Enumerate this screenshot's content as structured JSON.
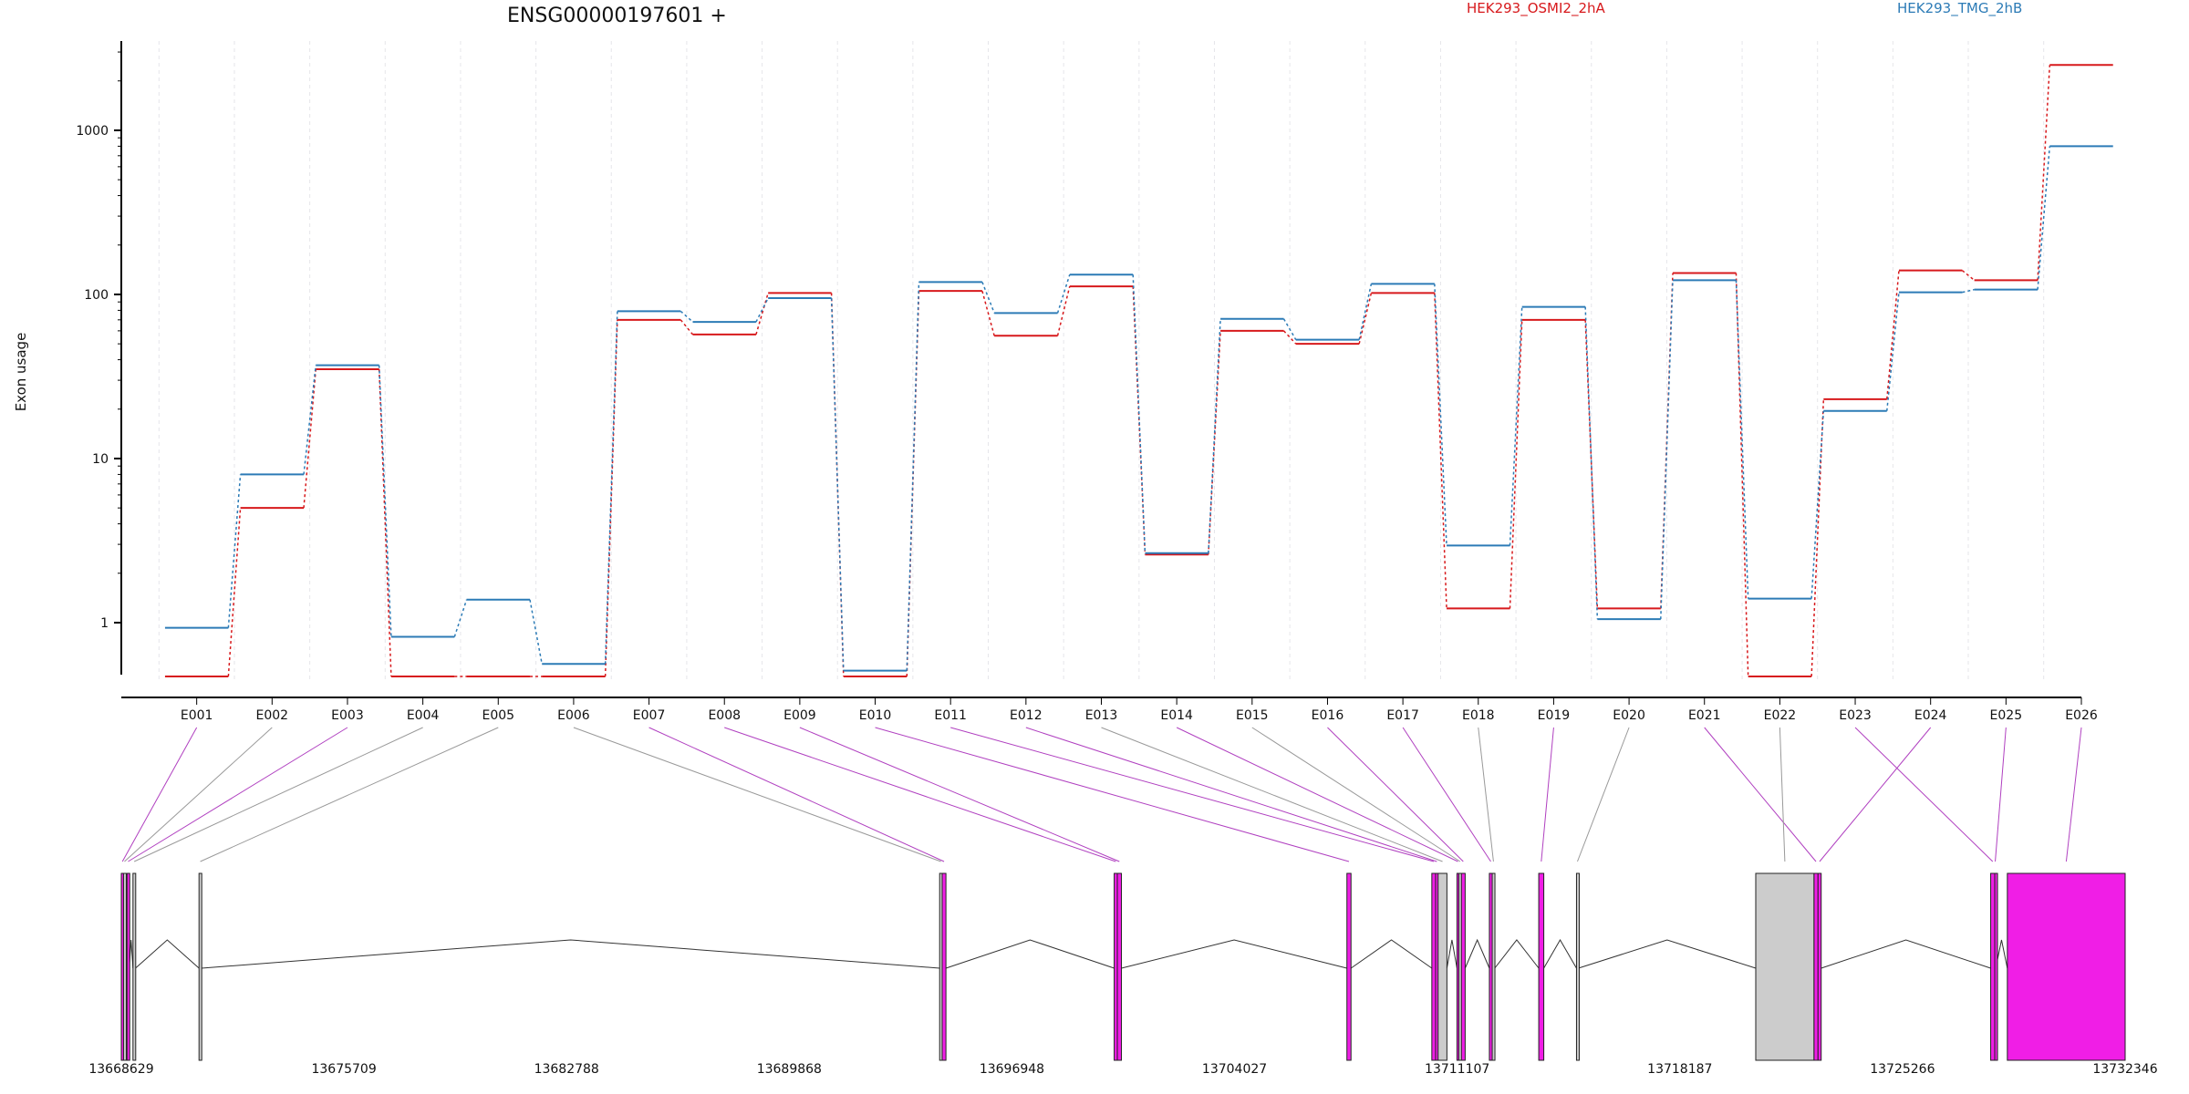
{
  "chart_data": {
    "type": "line",
    "title": "ENSG00000197601 +",
    "ylabel": "Exon usage",
    "xlabel": "",
    "yscale": "log",
    "ylim": [
      0.47,
      3500
    ],
    "yticks": [
      1,
      10,
      100,
      1000
    ],
    "grid": "vertical-dashed",
    "legend_placement": "top-right",
    "categories": [
      "E001",
      "E002",
      "E003",
      "E004",
      "E005",
      "E006",
      "E007",
      "E008",
      "E009",
      "E010",
      "E011",
      "E012",
      "E013",
      "E014",
      "E015",
      "E016",
      "E017",
      "E018",
      "E019",
      "E020",
      "E021",
      "E022",
      "E023",
      "E024",
      "E025",
      "E026"
    ],
    "series": [
      {
        "name": "HEK293_OSMI2_2hA",
        "color": "#d7191c",
        "values": [
          0.47,
          5,
          35,
          0.47,
          0.47,
          0.47,
          70,
          57,
          102,
          0.47,
          105,
          56,
          112,
          2.6,
          60,
          50,
          102,
          1.22,
          70,
          1.22,
          135,
          0.47,
          23,
          140,
          122,
          2500
        ]
      },
      {
        "name": "HEK293_TMG_2hB",
        "color": "#2c7bb6",
        "values": [
          0.93,
          8,
          37,
          0.82,
          1.38,
          0.56,
          79,
          68,
          95,
          0.51,
          119,
          77,
          132,
          2.65,
          71,
          53,
          116,
          2.95,
          84,
          1.05,
          122,
          1.4,
          19.5,
          103,
          107,
          800
        ]
      }
    ],
    "genomic_axis": {
      "tick_labels": [
        "13668629",
        "13675709",
        "13682788",
        "13689868",
        "13696948",
        "13704027",
        "13711107",
        "13718187",
        "13725266",
        "13732346"
      ],
      "tick_values": [
        13668629,
        13675709,
        13682788,
        13689868,
        13696948,
        13704027,
        13711107,
        13718187,
        13725266,
        13732346
      ]
    },
    "exons": [
      {
        "id": "E001",
        "start": 13668629,
        "end": 13668700,
        "color": "#f01ee6"
      },
      {
        "id": "E002",
        "start": 13668700,
        "end": 13668760,
        "color": "#cccccc"
      },
      {
        "id": "E003",
        "start": 13668810,
        "end": 13668880,
        "color": "#f01ee6"
      },
      {
        "id": "E004",
        "start": 13669000,
        "end": 13669080,
        "color": "#cccccc"
      },
      {
        "id": "E005",
        "start": 13671100,
        "end": 13671180,
        "color": "#cccccc"
      },
      {
        "id": "E006",
        "start": 13694650,
        "end": 13694730,
        "color": "#cccccc"
      },
      {
        "id": "E007",
        "start": 13694730,
        "end": 13694850,
        "color": "#f01ee6"
      },
      {
        "id": "E008",
        "start": 13700200,
        "end": 13700300,
        "color": "#f01ee6"
      },
      {
        "id": "E009",
        "start": 13700300,
        "end": 13700430,
        "color": "#f01ee6"
      },
      {
        "id": "E010",
        "start": 13707600,
        "end": 13707730,
        "color": "#f01ee6"
      },
      {
        "id": "E011",
        "start": 13710300,
        "end": 13710420,
        "color": "#f01ee6"
      },
      {
        "id": "E012",
        "start": 13710420,
        "end": 13710500,
        "color": "#f01ee6"
      },
      {
        "id": "E013",
        "start": 13710500,
        "end": 13710780,
        "color": "#cccccc"
      },
      {
        "id": "E014",
        "start": 13711100,
        "end": 13711160,
        "color": "#f01ee6"
      },
      {
        "id": "E015",
        "start": 13711160,
        "end": 13711240,
        "color": "#cccccc"
      },
      {
        "id": "E016",
        "start": 13711240,
        "end": 13711360,
        "color": "#f01ee6"
      },
      {
        "id": "E017",
        "start": 13712130,
        "end": 13712220,
        "color": "#f01ee6"
      },
      {
        "id": "E018",
        "start": 13712220,
        "end": 13712300,
        "color": "#cccccc"
      },
      {
        "id": "E019",
        "start": 13713700,
        "end": 13713860,
        "color": "#f01ee6"
      },
      {
        "id": "E020",
        "start": 13714900,
        "end": 13714960,
        "color": "#cccccc"
      },
      {
        "id": "E021",
        "start": 13722450,
        "end": 13722580,
        "color": "#f01ee6"
      },
      {
        "id": "E022",
        "start": 13720600,
        "end": 13722450,
        "color": "#cccccc"
      },
      {
        "id": "E023",
        "start": 13728070,
        "end": 13728200,
        "color": "#f01ee6"
      },
      {
        "id": "E024",
        "start": 13722580,
        "end": 13722680,
        "color": "#f01ee6"
      },
      {
        "id": "E025",
        "start": 13728200,
        "end": 13728230,
        "color": "#f01ee6"
      },
      {
        "id": "E026",
        "start": 13728600,
        "end": 13732346,
        "color": "#f01ee6"
      }
    ]
  }
}
